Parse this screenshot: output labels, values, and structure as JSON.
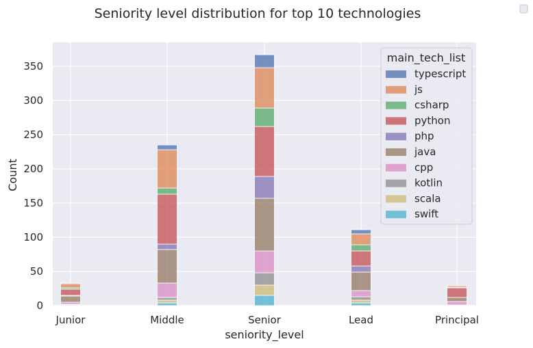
{
  "chart_data": {
    "type": "bar",
    "stacked": true,
    "title": "Seniority level distribution for top 10 technologies",
    "xlabel": "seniority_level",
    "ylabel": "Count",
    "ylim": [
      0,
      385
    ],
    "yticks": [
      0,
      50,
      100,
      150,
      200,
      250,
      300,
      350
    ],
    "grid": true,
    "categories": [
      "Junior",
      "Middle",
      "Senior",
      "Lead",
      "Principal"
    ],
    "legend": {
      "title": "main_tech_list",
      "placement": "upper-right"
    },
    "series": [
      {
        "name": "swift",
        "color": "#4bb0cf",
        "values": [
          1,
          4,
          15,
          4,
          0
        ]
      },
      {
        "name": "scala",
        "color": "#ccb974",
        "values": [
          0,
          4,
          15,
          4,
          0
        ]
      },
      {
        "name": "kotlin",
        "color": "#8c8c8c",
        "values": [
          1,
          4,
          18,
          5,
          1
        ]
      },
      {
        "name": "cpp",
        "color": "#da8bc3",
        "values": [
          3,
          21,
          32,
          9,
          5
        ]
      },
      {
        "name": "java",
        "color": "#937860",
        "values": [
          9,
          49,
          77,
          27,
          6
        ]
      },
      {
        "name": "php",
        "color": "#8172b3",
        "values": [
          1,
          8,
          32,
          9,
          0
        ]
      },
      {
        "name": "python",
        "color": "#c44e52",
        "values": [
          9,
          73,
          73,
          22,
          14
        ]
      },
      {
        "name": "csharp",
        "color": "#55a868",
        "values": [
          2,
          9,
          27,
          9,
          1
        ]
      },
      {
        "name": "js",
        "color": "#dd8452",
        "values": [
          6,
          56,
          59,
          16,
          2
        ]
      },
      {
        "name": "typescript",
        "color": "#4c72b0",
        "values": [
          1,
          7,
          19,
          6,
          0
        ]
      }
    ]
  }
}
